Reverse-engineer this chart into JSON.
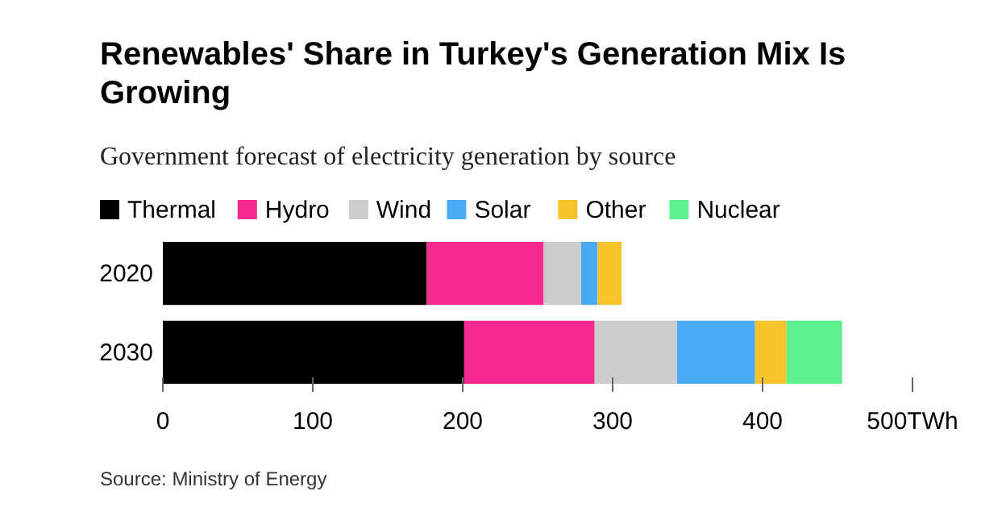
{
  "chart_data": {
    "type": "bar",
    "orientation": "horizontal",
    "stacked": true,
    "title": "Renewables' Share in Turkey's Generation Mix Is Growing",
    "subtitle": "Government forecast of electricity generation by source",
    "categories": [
      "2020",
      "2030"
    ],
    "series": [
      {
        "name": "Thermal",
        "color": "#000000",
        "values": [
          176,
          201
        ]
      },
      {
        "name": "Hydro",
        "color": "#f52a8e",
        "values": [
          78,
          87
        ]
      },
      {
        "name": "Wind",
        "color": "#cccccc",
        "values": [
          25,
          55
        ]
      },
      {
        "name": "Solar",
        "color": "#4aabf5",
        "values": [
          11,
          52
        ]
      },
      {
        "name": "Other",
        "color": "#f7c22a",
        "values": [
          16,
          21
        ]
      },
      {
        "name": "Nuclear",
        "color": "#5ef08e",
        "values": [
          null,
          37
        ]
      }
    ],
    "xlim": [
      0,
      500
    ],
    "xticks": [
      0,
      100,
      200,
      300,
      400,
      {
        "value": 500,
        "label": "500TWh"
      }
    ],
    "grid": false,
    "legend": "top left",
    "annotations": [
      "Source: Ministry of Energy"
    ]
  }
}
